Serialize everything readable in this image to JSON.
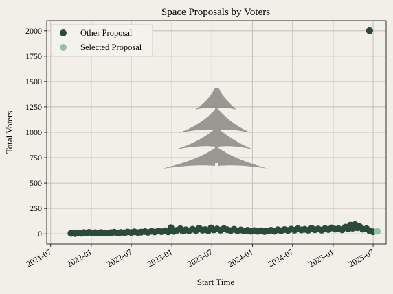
{
  "chart_data": {
    "type": "scatter",
    "title": "Space Proposals by Voters",
    "xlabel": "Start Time",
    "ylabel": "Total Voters",
    "xlim": [
      "2021-06-13",
      "2025-08-29"
    ],
    "ylim": [
      -100,
      2100
    ],
    "x_ticks": [
      "2021-07",
      "2022-01",
      "2022-07",
      "2023-01",
      "2023-07",
      "2024-01",
      "2024-07",
      "2025-01",
      "2025-07"
    ],
    "y_ticks": [
      0,
      250,
      500,
      750,
      1000,
      1250,
      1500,
      1750,
      2000
    ],
    "grid": true,
    "legend": "top-left",
    "series": [
      {
        "name": "Other Proposal",
        "color": "#2a4a3a",
        "points": [
          [
            "2021-10-01",
            5
          ],
          [
            "2021-10-10",
            8
          ],
          [
            "2021-10-20",
            3
          ],
          [
            "2021-11-01",
            10
          ],
          [
            "2021-11-15",
            6
          ],
          [
            "2021-11-28",
            12
          ],
          [
            "2021-12-10",
            8
          ],
          [
            "2021-12-22",
            15
          ],
          [
            "2022-01-05",
            9
          ],
          [
            "2022-01-18",
            11
          ],
          [
            "2022-02-01",
            7
          ],
          [
            "2022-02-15",
            13
          ],
          [
            "2022-03-01",
            10
          ],
          [
            "2022-03-15",
            8
          ],
          [
            "2022-04-01",
            12
          ],
          [
            "2022-04-15",
            16
          ],
          [
            "2022-05-01",
            9
          ],
          [
            "2022-05-15",
            14
          ],
          [
            "2022-06-01",
            11
          ],
          [
            "2022-06-15",
            18
          ],
          [
            "2022-07-01",
            13
          ],
          [
            "2022-07-15",
            20
          ],
          [
            "2022-08-01",
            12
          ],
          [
            "2022-08-15",
            17
          ],
          [
            "2022-09-01",
            22
          ],
          [
            "2022-09-15",
            15
          ],
          [
            "2022-10-01",
            25
          ],
          [
            "2022-10-15",
            18
          ],
          [
            "2022-11-01",
            28
          ],
          [
            "2022-11-15",
            21
          ],
          [
            "2022-12-01",
            30
          ],
          [
            "2022-12-15",
            19
          ],
          [
            "2022-12-28",
            60
          ],
          [
            "2023-01-10",
            24
          ],
          [
            "2023-01-25",
            35
          ],
          [
            "2023-02-08",
            50
          ],
          [
            "2023-02-20",
            27
          ],
          [
            "2023-03-05",
            40
          ],
          [
            "2023-03-20",
            30
          ],
          [
            "2023-04-05",
            45
          ],
          [
            "2023-04-20",
            33
          ],
          [
            "2023-05-05",
            55
          ],
          [
            "2023-05-20",
            36
          ],
          [
            "2023-06-01",
            42
          ],
          [
            "2023-06-15",
            30
          ],
          [
            "2023-06-28",
            58
          ],
          [
            "2023-07-10",
            38
          ],
          [
            "2023-07-25",
            48
          ],
          [
            "2023-08-10",
            35
          ],
          [
            "2023-08-25",
            52
          ],
          [
            "2023-09-10",
            40
          ],
          [
            "2023-09-25",
            32
          ],
          [
            "2023-10-10",
            45
          ],
          [
            "2023-10-25",
            30
          ],
          [
            "2023-11-10",
            38
          ],
          [
            "2023-11-25",
            28
          ],
          [
            "2023-12-10",
            35
          ],
          [
            "2023-12-25",
            25
          ],
          [
            "2024-01-10",
            32
          ],
          [
            "2024-01-25",
            24
          ],
          [
            "2024-02-10",
            30
          ],
          [
            "2024-02-25",
            22
          ],
          [
            "2024-03-10",
            28
          ],
          [
            "2024-03-25",
            35
          ],
          [
            "2024-04-10",
            26
          ],
          [
            "2024-04-25",
            40
          ],
          [
            "2024-05-10",
            30
          ],
          [
            "2024-05-25",
            42
          ],
          [
            "2024-06-10",
            33
          ],
          [
            "2024-06-25",
            46
          ],
          [
            "2024-07-10",
            36
          ],
          [
            "2024-07-25",
            50
          ],
          [
            "2024-08-10",
            38
          ],
          [
            "2024-08-25",
            44
          ],
          [
            "2024-09-10",
            35
          ],
          [
            "2024-09-25",
            55
          ],
          [
            "2024-10-10",
            40
          ],
          [
            "2024-10-25",
            48
          ],
          [
            "2024-11-10",
            36
          ],
          [
            "2024-11-25",
            52
          ],
          [
            "2024-12-10",
            42
          ],
          [
            "2024-12-25",
            58
          ],
          [
            "2025-01-10",
            45
          ],
          [
            "2025-01-25",
            50
          ],
          [
            "2025-02-10",
            40
          ],
          [
            "2025-02-25",
            65
          ],
          [
            "2025-03-10",
            48
          ],
          [
            "2025-03-20",
            85
          ],
          [
            "2025-03-30",
            55
          ],
          [
            "2025-04-10",
            90
          ],
          [
            "2025-04-20",
            60
          ],
          [
            "2025-05-01",
            70
          ],
          [
            "2025-05-15",
            45
          ],
          [
            "2025-06-01",
            50
          ],
          [
            "2025-06-15",
            30
          ],
          [
            "2025-07-01",
            20
          ],
          [
            "2025-06-15",
            2000
          ]
        ]
      },
      {
        "name": "Selected Proposal",
        "color": "#8fc49c",
        "points": [
          [
            "2025-07-20",
            25
          ]
        ]
      }
    ]
  },
  "watermark": {
    "shape": "fir-tree",
    "color": "#8a8a85"
  }
}
